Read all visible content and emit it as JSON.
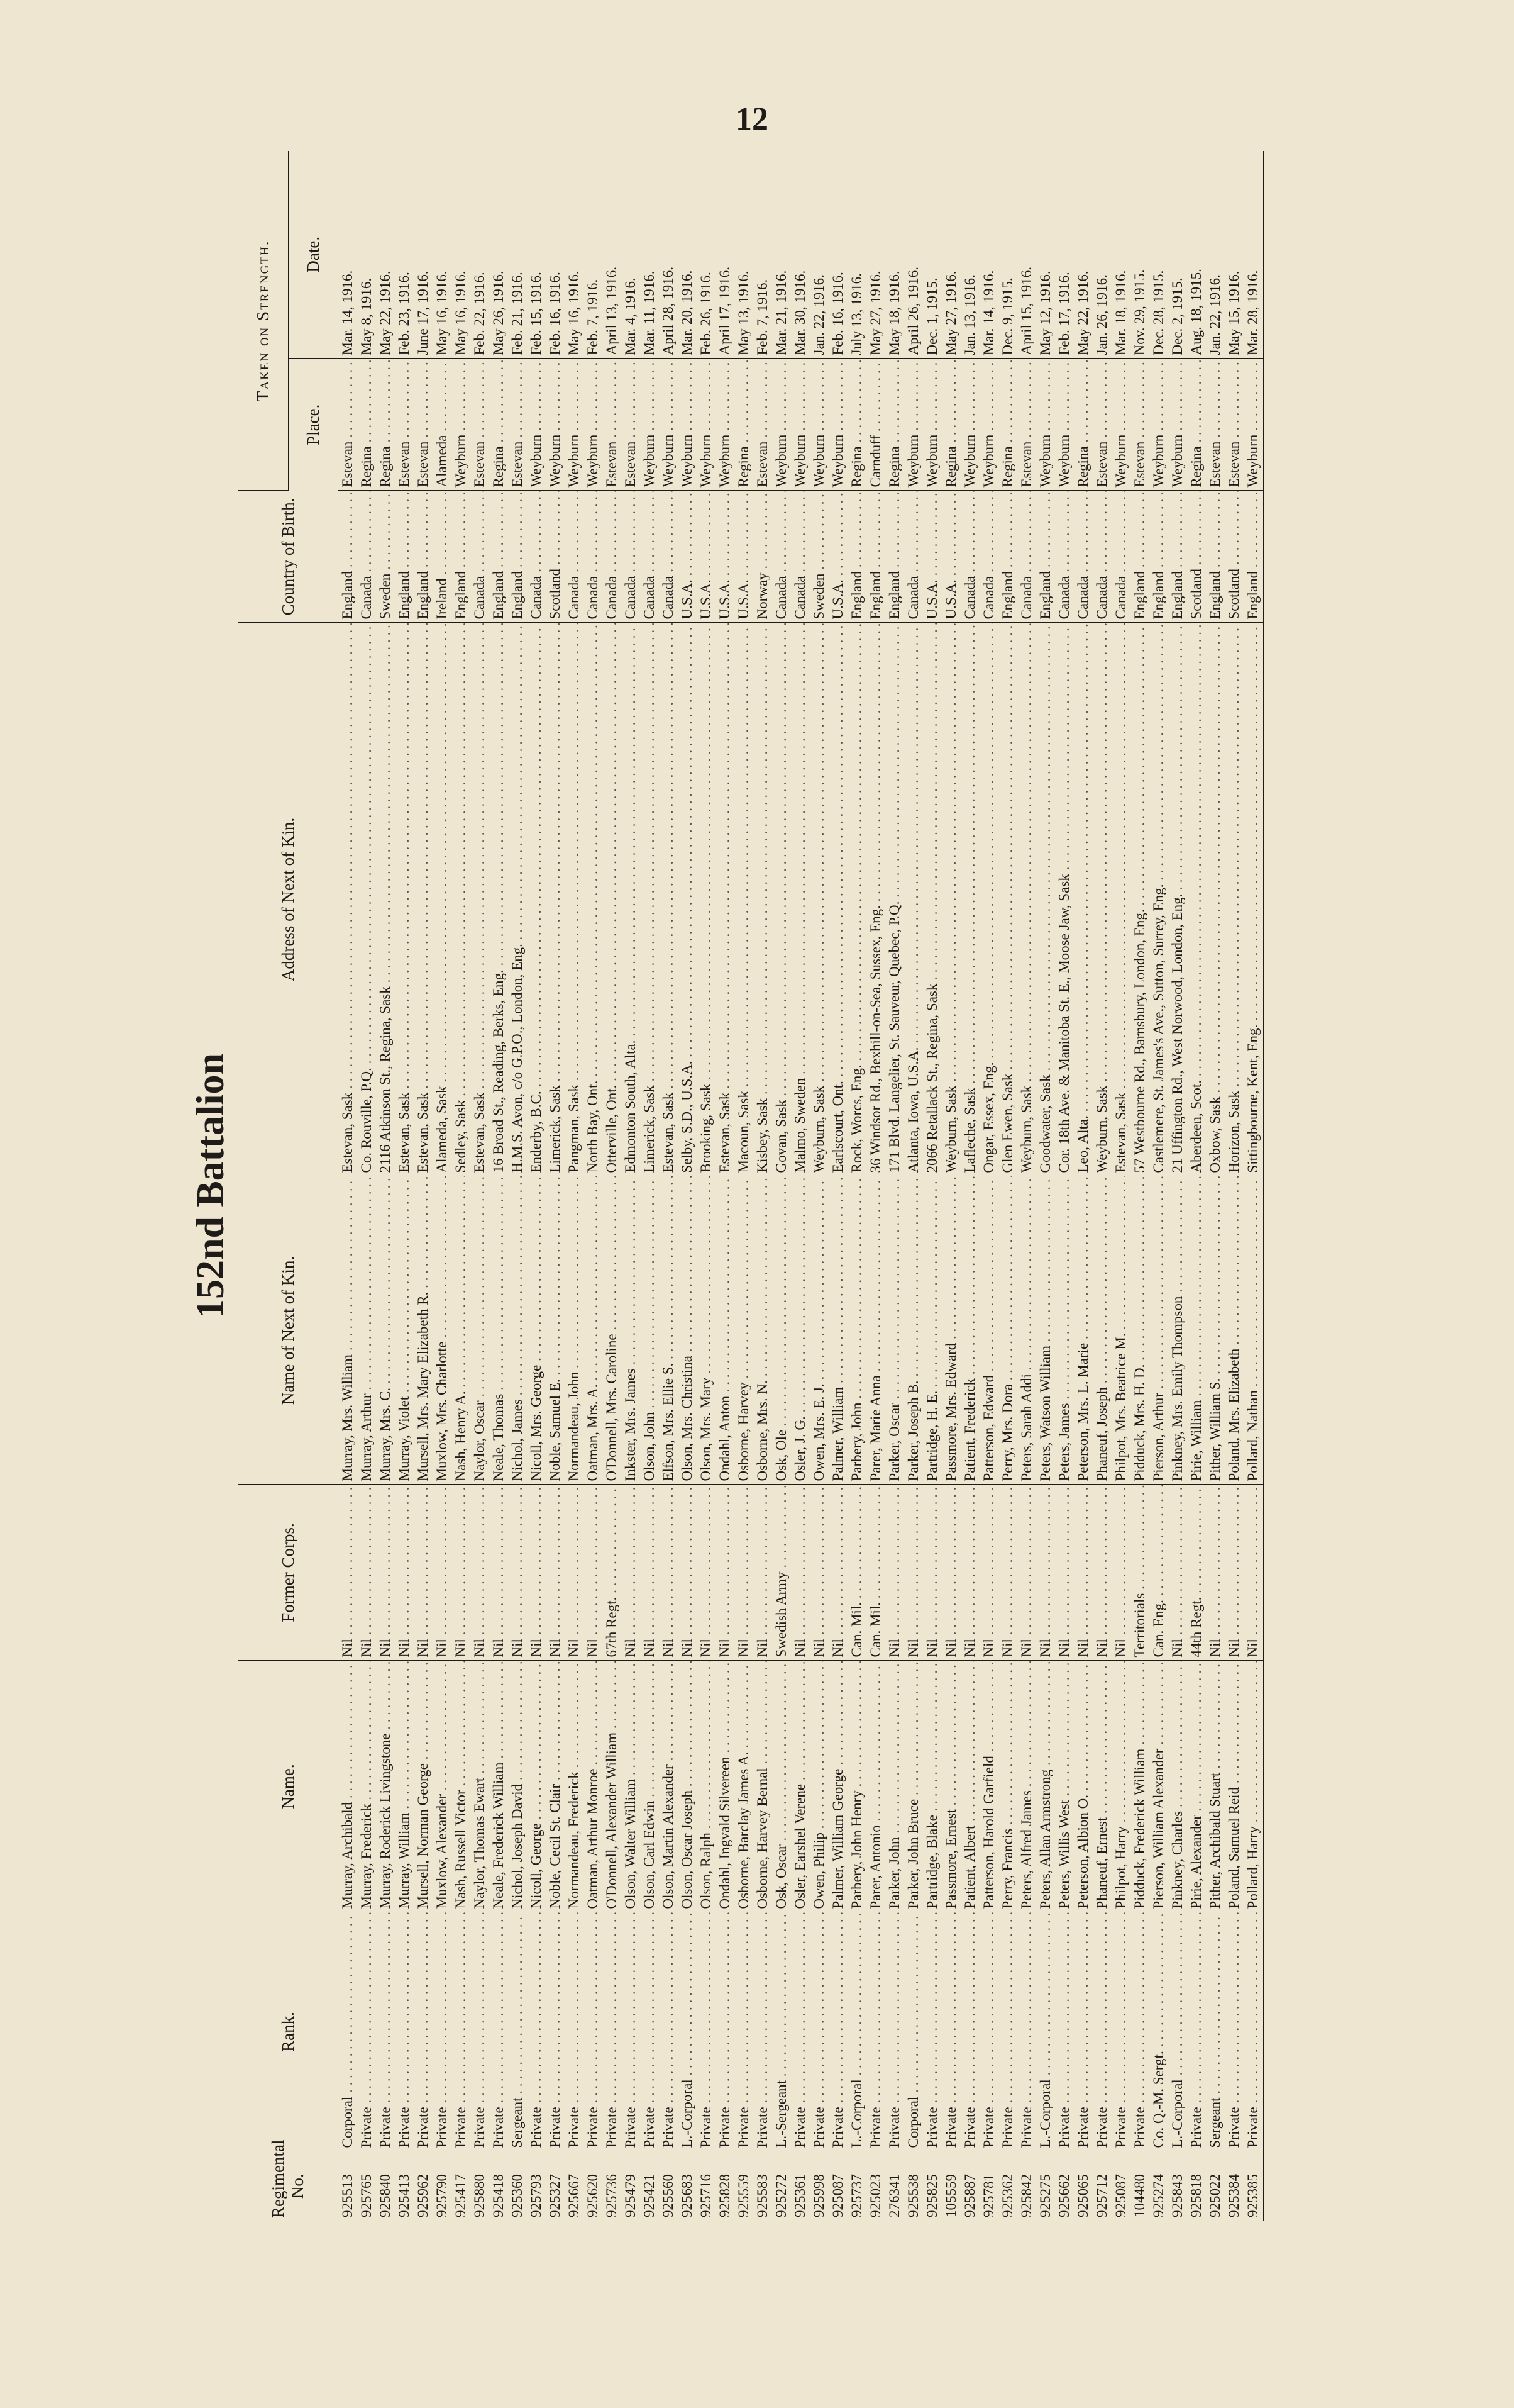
{
  "page_number": "12",
  "title": "152nd Battalion",
  "table": {
    "headers": [
      "Regimental No.",
      "Rank.",
      "Name.",
      "Former Corps.",
      "Name of Next of Kin.",
      "Address of Next of Kin.",
      "Country of Birth.",
      "Place.",
      "Date."
    ],
    "group_header": "Taken on Strength.",
    "rows": [
      [
        "925513",
        "Corporal",
        "Murray, Archibald",
        "Nil",
        "Murray, Mrs. William",
        "Estevan, Sask",
        "England",
        "Estevan",
        "Mar. 14, 1916."
      ],
      [
        "925765",
        "Private",
        "Murray, Frederick",
        "Nil",
        "Murray, Arthur",
        "Co. Rouville, P.Q.",
        "Canada",
        "Regina",
        "May 8, 1916."
      ],
      [
        "925840",
        "Private",
        "Murray, Roderick Livingstone",
        "Nil",
        "Murray, Mrs. C.",
        "2116 Atkinson St., Regina, Sask",
        "Sweden",
        "Regina",
        "May 22, 1916."
      ],
      [
        "925413",
        "Private",
        "Murray, William",
        "Nil",
        "Murray, Violet",
        "Estevan, Sask",
        "England",
        "Estevan",
        "Feb. 23, 1916."
      ],
      [
        "925962",
        "Private",
        "Mursell, Norman George",
        "Nil",
        "Mursell, Mrs. Mary Elizabeth R.",
        "Estevan, Sask",
        "England",
        "Estevan",
        "June 17, 1916."
      ],
      [
        "925790",
        "Private",
        "Muxlow, Alexander",
        "Nil",
        "Muxlow, Mrs. Charlotte",
        "Alameda, Sask",
        "Ireland",
        "Alameda",
        "May 16, 1916."
      ],
      [
        "925417",
        "Private",
        "Nash, Russell Victor",
        "Nil",
        "Nash, Henry A.",
        "Sedley, Sask",
        "England",
        "Weyburn",
        "May 16, 1916."
      ],
      [
        "925880",
        "Private",
        "Naylor, Thomas Ewart",
        "Nil",
        "Naylor, Oscar",
        "Estevan, Sask",
        "Canada",
        "Estevan",
        "Feb. 22, 1916."
      ],
      [
        "925418",
        "Private",
        "Neale, Frederick William",
        "Nil",
        "Neale, Thomas",
        "16 Broad St., Reading, Berks, Eng.",
        "England",
        "Regina",
        "May 26, 1916."
      ],
      [
        "925360",
        "Sergeant",
        "Nichol, Joseph David",
        "Nil",
        "Nichol, James",
        "H.M.S. Avon, c/o G.P.O., London, Eng.",
        "England",
        "Estevan",
        "Feb. 21, 1916."
      ],
      [
        "925793",
        "Private",
        "Nicoll, George",
        "Nil",
        "Nicoll, Mrs. George",
        "Enderby, B.C.",
        "Canada",
        "Weyburn",
        "Feb. 15, 1916."
      ],
      [
        "925327",
        "Private",
        "Noble, Cecil St. Clair",
        "Nil",
        "Noble, Samuel E.",
        "Limerick, Sask",
        "Scotland",
        "Weyburn",
        "Feb. 16, 1916."
      ],
      [
        "925667",
        "Private",
        "Normandeau, Frederick",
        "Nil",
        "Normandeau, John",
        "Pangman, Sask",
        "Canada",
        "Weyburn",
        "May 16, 1916."
      ],
      [
        "925620",
        "Private",
        "Oatman, Arthur Monroe",
        "Nil",
        "Oatman, Mrs. A.",
        "North Bay, Ont.",
        "Canada",
        "Weyburn",
        "Feb. 7, 1916."
      ],
      [
        "925736",
        "Private",
        "O'Donnell, Alexander William",
        "67th Regt.",
        "O'Donnell, Mrs. Caroline",
        "Otterville, Ont.",
        "Canada",
        "Estevan",
        "April 13, 1916."
      ],
      [
        "925479",
        "Private",
        "Olson, Walter William",
        "Nil",
        "Inkster, Mrs. James",
        "Edmonton South, Alta.",
        "Canada",
        "Estevan",
        "Mar. 4, 1916."
      ],
      [
        "925421",
        "Private",
        "Olson, Carl Edwin",
        "Nil",
        "Olson, John",
        "Limerick, Sask",
        "Canada",
        "Weyburn",
        "Mar. 11, 1916."
      ],
      [
        "925560",
        "Private",
        "Olson, Martin Alexander",
        "Nil",
        "Elfson, Mrs. Ellie S.",
        "Estevan, Sask",
        "Canada",
        "Weyburn",
        "April 28, 1916."
      ],
      [
        "925683",
        "L.-Corporal",
        "Olson, Oscar Joseph",
        "Nil",
        "Olson, Mrs. Christina",
        "Selby, S.D., U.S.A.",
        "U.S.A.",
        "Weyburn",
        "Mar. 20, 1916."
      ],
      [
        "925716",
        "Private",
        "Olson, Ralph",
        "Nil",
        "Olson, Mrs. Mary",
        "Brooking, Sask",
        "U.S.A.",
        "Weyburn",
        "Feb. 26, 1916."
      ],
      [
        "925828",
        "Private",
        "Ondahl, Ingvald Silvereen",
        "Nil",
        "Ondahl, Anton",
        "Estevan, Sask",
        "U.S.A.",
        "Weyburn",
        "April 17, 1916."
      ],
      [
        "925559",
        "Private",
        "Osborne, Barclay James A.",
        "Nil",
        "Osborne, Harvey",
        "Macoun, Sask",
        "U.S.A.",
        "Regina",
        "May 13, 1916."
      ],
      [
        "925583",
        "Private",
        "Osborne, Harvey Bernal",
        "Nil",
        "Osborne, Mrs. N.",
        "Kisbey, Sask",
        "Norway",
        "Estevan",
        "Feb. 7, 1916."
      ],
      [
        "925272",
        "L.-Sergeant",
        "Osk, Oscar",
        "Swedish Army",
        "Osk, Ole",
        "Govan, Sask",
        "Canada",
        "Weyburn",
        "Mar. 21, 1916."
      ],
      [
        "925361",
        "Private",
        "Osler, Earshel Verene",
        "Nil",
        "Osler, J. G.",
        "Malmo, Sweden",
        "Canada",
        "Weyburn",
        "Mar. 30, 1916."
      ],
      [
        "925998",
        "Private",
        "Owen, Philip",
        "Nil",
        "Owen, Mrs. E. J.",
        "Weyburn, Sask",
        "Sweden",
        "Weyburn",
        "Jan. 22, 1916."
      ],
      [
        "925087",
        "Private",
        "Palmer, William George",
        "Nil",
        "Palmer, William",
        "Earlscourt, Ont.",
        "U.S.A.",
        "Weyburn",
        "Feb. 16, 1916."
      ],
      [
        "925737",
        "L.-Corporal",
        "Parbery, John Henry",
        "Can. Mil.",
        "Parbery, John",
        "Rock, Worcs, Eng.",
        "England",
        "Regina",
        "July 13, 1916."
      ],
      [
        "925023",
        "Private",
        "Parer, Antonio",
        "Can. Mil.",
        "Parer, Marie Anna",
        "36 Windsor Rd., Bexhill-on-Sea, Sussex, Eng.",
        "England",
        "Carnduff",
        "May 27, 1916."
      ],
      [
        "276341",
        "Private",
        "Parker, John",
        "Nil",
        "Parker, Oscar",
        "171 Blvd. Langelier, St. Sauveur, Quebec, P.Q.",
        "England",
        "Regina",
        "May 18, 1916."
      ],
      [
        "925538",
        "Corporal",
        "Parker, John Bruce",
        "Nil",
        "Parker, Joseph B.",
        "Atlanta, Iowa, U.S.A.",
        "Canada",
        "Weyburn",
        "April 26, 1916."
      ],
      [
        "925825",
        "Private",
        "Partridge, Blake",
        "Nil",
        "Partridge, H. E.",
        "2066 Retallack St., Regina, Sask",
        "U.S.A.",
        "Weyburn",
        "Dec. 1, 1915."
      ],
      [
        "105559",
        "Private",
        "Passmore, Ernest",
        "Nil",
        "Passmore, Mrs. Edward",
        "Weyburn, Sask",
        "U.S.A.",
        "Regina",
        "May 27, 1916."
      ],
      [
        "925887",
        "Private",
        "Patient, Albert",
        "Nil",
        "Patient, Frederick",
        "Lafleche, Sask",
        "Canada",
        "Weyburn",
        "Jan. 13, 1916."
      ],
      [
        "925781",
        "Private",
        "Patterson, Harold Garfield",
        "Nil",
        "Patterson, Edward",
        "Ongar, Essex, Eng.",
        "Canada",
        "Weyburn",
        "Mar. 14, 1916."
      ],
      [
        "925362",
        "Private",
        "Perry, Francis",
        "Nil",
        "Perry, Mrs. Dora",
        "Glen Ewen, Sask",
        "England",
        "Regina",
        "Dec. 9, 1915."
      ],
      [
        "925842",
        "Private",
        "Peters, Alfred James",
        "Nil",
        "Peters, Sarah Addi",
        "Weyburn, Sask",
        "Canada",
        "Estevan",
        "April 15, 1916."
      ],
      [
        "925275",
        "L.-Corporal",
        "Peters, Allan Armstrong",
        "Nil",
        "Peters, Watson William",
        "Goodwater, Sask",
        "England",
        "Weyburn",
        "May 12, 1916."
      ],
      [
        "925662",
        "Private",
        "Peters, Willis West",
        "Nil",
        "Peters, James",
        "Cor. 18th Ave. & Manitoba St. E., Moose Jaw, Sask",
        "Canada",
        "Weyburn",
        "Feb. 17, 1916."
      ],
      [
        "925065",
        "Private",
        "Peterson, Albion O.",
        "Nil",
        "Peterson, Mrs. L. Marie",
        "Leo, Alta.",
        "Canada",
        "Regina",
        "May 22, 1916."
      ],
      [
        "925712",
        "Private",
        "Phaneuf, Ernest",
        "Nil",
        "Phaneuf, Joseph",
        "Weyburn, Sask",
        "Canada",
        "Estevan",
        "Jan. 26, 1916."
      ],
      [
        "925087",
        "Private",
        "Philpot, Harry",
        "Nil",
        "Philpot, Mrs. Beatrice M.",
        "Estevan, Sask",
        "Canada",
        "Weyburn",
        "Mar. 18, 1916."
      ],
      [
        "104480",
        "Private",
        "Pidduck, Frederick William",
        "Territorials",
        "Pidduck, Mrs. H. D.",
        "57 Westbourne Rd., Barnsbury, London, Eng.",
        "England",
        "Estevan",
        "Nov. 29, 1915."
      ],
      [
        "925274",
        "Co. Q.-M. Sergt.",
        "Pierson, William Alexander",
        "Can. Eng.",
        "Pierson, Arthur",
        "Castlemere, St. James's Ave., Sutton, Surrey, Eng.",
        "England",
        "Weyburn",
        "Dec. 28, 1915."
      ],
      [
        "925843",
        "L.-Corporal",
        "Pinkney, Charles",
        "Nil",
        "Pinkney, Mrs. Emily Thompson",
        "21 Uffington Rd., West Norwood, London, Eng.",
        "England",
        "Weyburn",
        "Dec. 2, 1915."
      ],
      [
        "925818",
        "Private",
        "Pirie, Alexander",
        "44th Regt.",
        "Pirie, William",
        "Aberdeen, Scot.",
        "Scotland",
        "Regina",
        "Aug. 18, 1915."
      ],
      [
        "925022",
        "Sergeant",
        "Pither, Archibald Stuart",
        "Nil",
        "Pither, William S.",
        "Oxbow, Sask",
        "England",
        "Estevan",
        "Jan. 22, 1916."
      ],
      [
        "925384",
        "Private",
        "Poland, Samuel Reid",
        "Nil",
        "Poland, Mrs. Elizabeth",
        "Horizon, Sask",
        "Scotland",
        "Estevan",
        "May 15, 1916."
      ],
      [
        "925385",
        "Private",
        "Pollard, Harry",
        "Nil",
        "Pollard, Nathan",
        "Sittingbourne, Kent, Eng.",
        "England",
        "Weyburn",
        "Mar. 28, 1916."
      ]
    ]
  }
}
